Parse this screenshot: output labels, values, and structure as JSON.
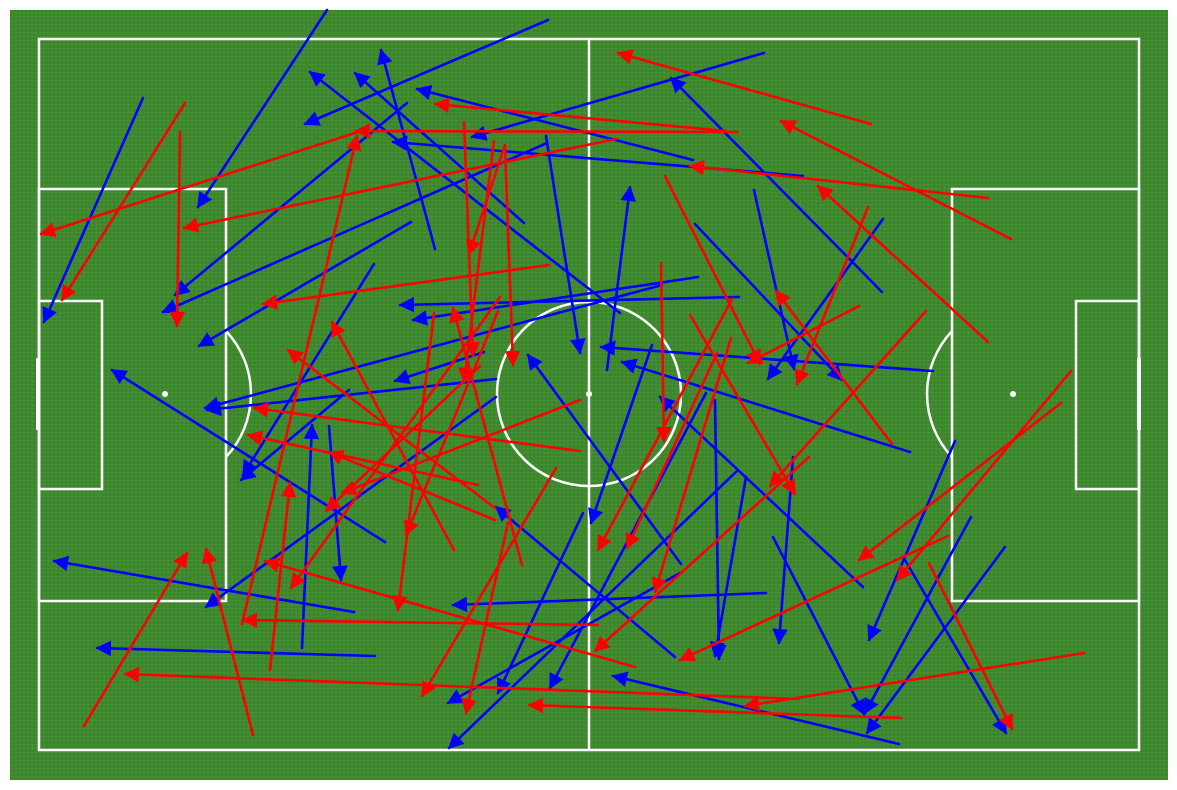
{
  "colors": {
    "grass": "#3f8a2f",
    "grass_dark": "#367a28",
    "lines": "#ffffff",
    "team_a": "#0000ff",
    "team_b": "#ff0000"
  },
  "passes": {
    "blue": [
      [
        327,
        10,
        198,
        207
      ],
      [
        548,
        20,
        305,
        124
      ],
      [
        143,
        98,
        44,
        322
      ],
      [
        407,
        103,
        175,
        295
      ],
      [
        764,
        53,
        472,
        137
      ],
      [
        435,
        249,
        381,
        50
      ],
      [
        524,
        223,
        355,
        73
      ],
      [
        620,
        313,
        310,
        72
      ],
      [
        547,
        143,
        163,
        312
      ],
      [
        546,
        136,
        580,
        353
      ],
      [
        693,
        160,
        417,
        89
      ],
      [
        803,
        176,
        393,
        142
      ],
      [
        698,
        277,
        413,
        320
      ],
      [
        739,
        297,
        400,
        305
      ],
      [
        411,
        222,
        199,
        346
      ],
      [
        374,
        264,
        243,
        475
      ],
      [
        662,
        285,
        205,
        408
      ],
      [
        496,
        397,
        206,
        607
      ],
      [
        496,
        379,
        207,
        410
      ],
      [
        385,
        542,
        112,
        370
      ],
      [
        484,
        352,
        395,
        381
      ],
      [
        349,
        390,
        241,
        480
      ],
      [
        329,
        426,
        341,
        580
      ],
      [
        302,
        648,
        312,
        425
      ],
      [
        354,
        612,
        54,
        561
      ],
      [
        375,
        656,
        97,
        648
      ],
      [
        882,
        292,
        671,
        78
      ],
      [
        754,
        190,
        794,
        369
      ],
      [
        883,
        219,
        768,
        379
      ],
      [
        695,
        224,
        842,
        380
      ],
      [
        933,
        371,
        601,
        347
      ],
      [
        910,
        452,
        622,
        362
      ],
      [
        607,
        370,
        630,
        187
      ],
      [
        652,
        345,
        591,
        523
      ],
      [
        681,
        564,
        528,
        355
      ],
      [
        863,
        587,
        660,
        397
      ],
      [
        746,
        477,
        715,
        656
      ],
      [
        715,
        400,
        719,
        659
      ],
      [
        766,
        593,
        453,
        605
      ],
      [
        706,
        393,
        550,
        688
      ],
      [
        738,
        470,
        449,
        748
      ],
      [
        680,
        573,
        448,
        703
      ],
      [
        583,
        513,
        498,
        693
      ],
      [
        675,
        657,
        496,
        507
      ],
      [
        899,
        744,
        613,
        676
      ],
      [
        793,
        457,
        779,
        643
      ],
      [
        773,
        537,
        864,
        714
      ],
      [
        955,
        441,
        869,
        640
      ],
      [
        971,
        517,
        865,
        713
      ],
      [
        1005,
        547,
        867,
        733
      ],
      [
        905,
        560,
        1006,
        733
      ]
    ],
    "red": [
      [
        871,
        124,
        618,
        53
      ],
      [
        726,
        131,
        435,
        104
      ],
      [
        737,
        132,
        356,
        131
      ],
      [
        361,
        131,
        41,
        234
      ],
      [
        185,
        103,
        62,
        300
      ],
      [
        180,
        132,
        177,
        326
      ],
      [
        616,
        139,
        184,
        228
      ],
      [
        505,
        145,
        469,
        254
      ],
      [
        549,
        265,
        263,
        304
      ],
      [
        464,
        122,
        473,
        356
      ],
      [
        494,
        141,
        464,
        382
      ],
      [
        505,
        147,
        513,
        365
      ],
      [
        988,
        198,
        690,
        166
      ],
      [
        1011,
        239,
        781,
        121
      ],
      [
        988,
        342,
        818,
        186
      ],
      [
        868,
        207,
        797,
        384
      ],
      [
        859,
        306,
        748,
        363
      ],
      [
        665,
        176,
        760,
        364
      ],
      [
        926,
        311,
        770,
        486
      ],
      [
        731,
        338,
        655,
        592
      ],
      [
        717,
        353,
        627,
        548
      ],
      [
        732,
        299,
        598,
        550
      ],
      [
        661,
        263,
        664,
        441
      ],
      [
        690,
        315,
        795,
        494
      ],
      [
        892,
        444,
        776,
        291
      ],
      [
        1061,
        403,
        859,
        560
      ],
      [
        1071,
        371,
        897,
        580
      ],
      [
        929,
        563,
        1012,
        729
      ],
      [
        809,
        457,
        595,
        651
      ],
      [
        948,
        536,
        680,
        660
      ],
      [
        1084,
        653,
        745,
        706
      ],
      [
        901,
        718,
        529,
        705
      ],
      [
        799,
        699,
        125,
        674
      ],
      [
        635,
        667,
        265,
        561
      ],
      [
        598,
        625,
        243,
        620
      ],
      [
        556,
        468,
        422,
        696
      ],
      [
        508,
        523,
        466,
        713
      ],
      [
        580,
        400,
        342,
        493
      ],
      [
        580,
        451,
        254,
        408
      ],
      [
        522,
        565,
        453,
        308
      ],
      [
        498,
        311,
        406,
        535
      ],
      [
        434,
        313,
        398,
        610
      ],
      [
        500,
        297,
        291,
        588
      ],
      [
        495,
        508,
        288,
        350
      ],
      [
        454,
        550,
        332,
        322
      ],
      [
        270,
        670,
        290,
        483
      ],
      [
        253,
        735,
        206,
        549
      ],
      [
        84,
        726,
        187,
        553
      ],
      [
        242,
        624,
        357,
        136
      ],
      [
        480,
        366,
        326,
        511
      ],
      [
        495,
        520,
        329,
        452
      ],
      [
        478,
        485,
        248,
        435
      ]
    ]
  }
}
